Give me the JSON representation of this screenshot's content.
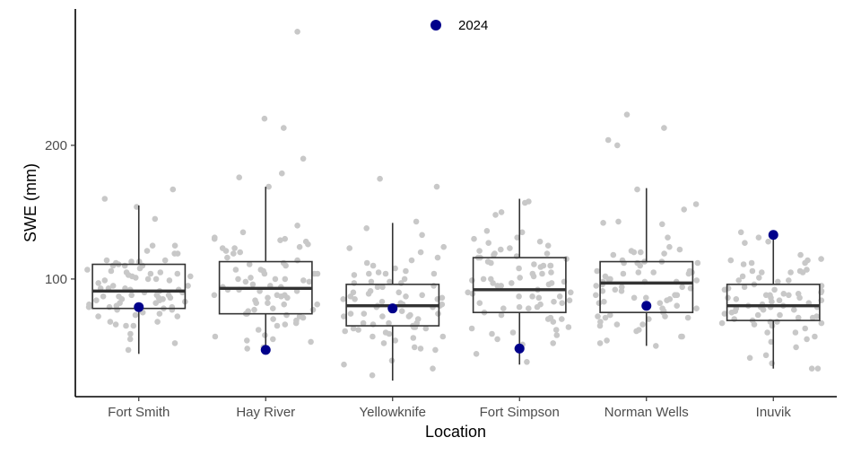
{
  "chart_data": {
    "type": "box",
    "title": "",
    "xlabel": "Location",
    "ylabel": "SWE (mm)",
    "categories": [
      "Fort Smith",
      "Hay River",
      "Yellowknife",
      "Fort Simpson",
      "Norman Wells",
      "Inuvik"
    ],
    "ylim": [
      12,
      302
    ],
    "yticks": [
      100,
      200
    ],
    "grid": false,
    "legend": {
      "position": "top-center",
      "entries": [
        {
          "label": "2024",
          "color": "#00008b"
        }
      ]
    },
    "colors": {
      "box": "#333333",
      "points": "#c8c8c8",
      "highlight": "#00008b"
    },
    "boxes": [
      {
        "category": "Fort Smith",
        "q1": 78,
        "median": 91,
        "q3": 111,
        "whisker_low": 44,
        "whisker_high": 155,
        "value_2024": 79
      },
      {
        "category": "Hay River",
        "q1": 74,
        "median": 93,
        "q3": 113,
        "whisker_low": 47,
        "whisker_high": 169,
        "value_2024": 47
      },
      {
        "category": "Yellowknife",
        "q1": 65,
        "median": 80,
        "q3": 96,
        "whisker_low": 24,
        "whisker_high": 142,
        "value_2024": 78
      },
      {
        "category": "Fort Simpson",
        "q1": 75,
        "median": 92,
        "q3": 116,
        "whisker_low": 36,
        "whisker_high": 160,
        "value_2024": 48
      },
      {
        "category": "Norman Wells",
        "q1": 75,
        "median": 97,
        "q3": 113,
        "whisker_low": 50,
        "whisker_high": 168,
        "value_2024": 80
      },
      {
        "category": "Inuvik",
        "q1": 69,
        "median": 80,
        "q3": 96,
        "whisker_low": 33,
        "whisker_high": 135,
        "value_2024": 133
      }
    ],
    "points": [
      [
        145,
        111,
        125,
        102,
        68,
        88,
        160,
        92,
        105,
        167,
        78,
        85,
        99,
        114,
        121,
        106,
        93,
        88,
        72,
        119,
        97,
        101,
        85,
        110,
        66,
        93,
        90,
        104,
        59,
        113,
        79,
        99,
        87,
        82,
        65,
        113,
        95,
        73,
        114,
        68,
        102,
        119,
        77,
        87,
        110,
        52,
        91,
        72,
        100,
        84,
        86,
        47,
        74,
        95,
        105,
        103,
        92,
        83,
        88,
        81,
        110,
        93,
        100,
        107,
        80,
        112,
        55,
        79,
        86,
        154,
        75,
        125,
        104,
        84,
        79,
        90,
        65,
        108,
        82,
        77
      ],
      [
        104,
        77,
        123,
        86,
        126,
        65,
        57,
        129,
        87,
        84,
        140,
        100,
        135,
        67,
        81,
        58,
        119,
        78,
        213,
        99,
        70,
        110,
        123,
        53,
        94,
        92,
        107,
        285,
        74,
        190,
        100,
        114,
        82,
        62,
        131,
        48,
        86,
        124,
        69,
        104,
        100,
        71,
        98,
        88,
        120,
        169,
        94,
        66,
        112,
        220,
        179,
        98,
        88,
        116,
        55,
        107,
        81,
        91,
        74,
        130,
        101,
        96,
        176,
        76,
        121,
        95,
        104,
        73,
        82,
        72,
        91,
        54,
        106,
        49,
        92,
        128,
        111,
        130,
        88,
        77
      ],
      [
        74,
        103,
        90,
        63,
        120,
        49,
        64,
        80,
        67,
        98,
        169,
        110,
        87,
        33,
        94,
        57,
        74,
        138,
        97,
        81,
        112,
        67,
        28,
        63,
        91,
        108,
        143,
        54,
        65,
        114,
        104,
        85,
        48,
        72,
        97,
        39,
        67,
        105,
        56,
        87,
        82,
        79,
        60,
        104,
        76,
        66,
        116,
        85,
        100,
        72,
        79,
        89,
        61,
        94,
        83,
        74,
        86,
        36,
        52,
        175,
        62,
        104,
        98,
        80,
        64,
        124,
        88,
        59,
        73,
        95,
        57,
        133,
        81,
        106,
        90,
        123,
        47,
        70,
        85,
        72
      ],
      [
        95,
        52,
        110,
        115,
        135,
        87,
        127,
        116,
        100,
        82,
        71,
        148,
        95,
        58,
        125,
        128,
        109,
        113,
        83,
        68,
        119,
        112,
        100,
        44,
        97,
        78,
        131,
        87,
        130,
        73,
        104,
        70,
        136,
        63,
        118,
        96,
        79,
        102,
        38,
        121,
        97,
        60,
        111,
        87,
        122,
        82,
        158,
        157,
        70,
        97,
        99,
        90,
        110,
        110,
        59,
        113,
        79,
        98,
        123,
        117,
        64,
        92,
        48,
        86,
        51,
        101,
        81,
        104,
        55,
        119,
        89,
        75,
        62,
        108,
        150,
        90,
        116,
        84,
        105,
        78
      ],
      [
        156,
        80,
        124,
        57,
        99,
        113,
        213,
        204,
        88,
        121,
        76,
        86,
        104,
        66,
        72,
        119,
        54,
        100,
        112,
        61,
        120,
        52,
        93,
        110,
        82,
        78,
        98,
        88,
        120,
        200,
        85,
        68,
        106,
        57,
        112,
        152,
        141,
        94,
        73,
        142,
        50,
        105,
        75,
        91,
        104,
        91,
        83,
        118,
        71,
        112,
        94,
        102,
        98,
        106,
        65,
        131,
        72,
        167,
        88,
        100,
        92,
        84,
        122,
        78,
        66,
        113,
        143,
        88,
        95,
        114,
        223,
        86,
        105,
        62,
        96,
        82,
        71,
        98,
        70,
        105
      ],
      [
        112,
        135,
        86,
        127,
        79,
        105,
        73,
        84,
        69,
        114,
        131,
        88,
        65,
        128,
        79,
        99,
        68,
        92,
        73,
        71,
        106,
        33,
        101,
        53,
        85,
        98,
        96,
        68,
        63,
        83,
        77,
        107,
        91,
        37,
        105,
        88,
        55,
        84,
        72,
        95,
        67,
        70,
        80,
        60,
        112,
        88,
        76,
        82,
        41,
        93,
        78,
        114,
        99,
        67,
        86,
        106,
        57,
        111,
        90,
        79,
        94,
        43,
        102,
        81,
        49,
        86,
        71,
        105,
        77,
        33,
        118,
        66,
        89,
        75,
        89,
        80,
        60,
        74,
        115,
        92
      ]
    ]
  }
}
